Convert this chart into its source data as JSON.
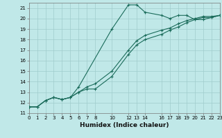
{
  "bg_color": "#c0e8e8",
  "grid_color": "#a0cccc",
  "line_color": "#1a6b5a",
  "xlabel": "Humidex (Indice chaleur)",
  "xlim": [
    0,
    23
  ],
  "ylim": [
    11,
    21.5
  ],
  "yticks": [
    11,
    12,
    13,
    14,
    15,
    16,
    17,
    18,
    19,
    20,
    21
  ],
  "xticks": [
    0,
    1,
    2,
    3,
    4,
    5,
    6,
    7,
    8,
    10,
    12,
    13,
    14,
    16,
    17,
    18,
    19,
    20,
    21,
    22,
    23
  ],
  "series": [
    {
      "x": [
        0,
        1,
        2,
        3,
        4,
        5,
        6,
        10,
        12,
        13,
        14,
        16,
        17,
        18,
        19,
        20,
        21,
        22,
        23
      ],
      "y": [
        11.6,
        11.6,
        12.2,
        12.5,
        12.3,
        12.5,
        13.5,
        19.0,
        21.3,
        21.3,
        20.6,
        20.3,
        20.0,
        20.3,
        20.3,
        19.9,
        19.9,
        20.1,
        20.3
      ]
    },
    {
      "x": [
        0,
        1,
        2,
        3,
        4,
        5,
        6,
        7,
        8,
        10,
        12,
        13,
        14,
        16,
        17,
        18,
        19,
        20,
        21,
        22,
        23
      ],
      "y": [
        11.6,
        11.6,
        12.2,
        12.5,
        12.3,
        12.5,
        13.0,
        13.3,
        13.3,
        14.5,
        16.6,
        17.5,
        18.0,
        18.5,
        18.9,
        19.2,
        19.6,
        19.9,
        20.1,
        20.1,
        20.3
      ]
    },
    {
      "x": [
        0,
        1,
        2,
        3,
        4,
        5,
        6,
        7,
        8,
        10,
        12,
        13,
        14,
        16,
        17,
        18,
        19,
        20,
        21,
        22,
        23
      ],
      "y": [
        11.6,
        11.6,
        12.2,
        12.5,
        12.3,
        12.5,
        13.0,
        13.5,
        13.8,
        15.0,
        17.0,
        17.9,
        18.4,
        18.9,
        19.1,
        19.5,
        19.8,
        20.0,
        20.2,
        20.2,
        20.3
      ]
    }
  ]
}
